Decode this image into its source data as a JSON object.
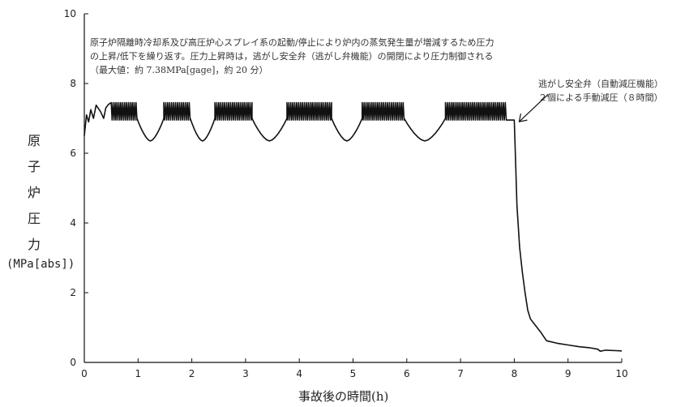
{
  "chart_data": {
    "type": "line",
    "title": "",
    "xlabel": "事故後の時間(h)",
    "ylabel": "原子炉圧力",
    "ylabel_chars": [
      "原",
      "子",
      "炉",
      "圧",
      "力"
    ],
    "ylabel_unit": "(MPa[abs])",
    "xlim": [
      0,
      10
    ],
    "ylim": [
      0,
      10
    ],
    "x_ticks": [
      "0",
      "1",
      "2",
      "3",
      "4",
      "5",
      "6",
      "7",
      "8",
      "9",
      "10"
    ],
    "y_ticks": [
      "0",
      "2",
      "4",
      "6",
      "8",
      "10"
    ],
    "grid": false,
    "legend": "none",
    "note": "原子炉隔離時冷却系及び高圧炉心スプレイ系の起動/停止により炉内の蒸気発生量が増減するため圧力\nの上昇/低下を繰り返す。圧力上昇時は，逃がし安全弁（逃がし弁機能）の開閉により圧力制御される\n（最大値：約 7.38MPa[gage]，約 20 分）",
    "annotation": {
      "text": "逃がし安全弁（自動減圧機能）\n２個による手動減圧（８時間）",
      "x": 8.0,
      "y": 6.95
    },
    "series": [
      {
        "name": "",
        "color": "#111111",
        "cycles": [
          [
            0.5,
            0.98
          ],
          [
            1.48,
            1.97
          ],
          [
            2.43,
            3.12
          ],
          [
            3.77,
            4.6
          ],
          [
            5.17,
            5.95
          ],
          [
            6.72,
            7.85
          ]
        ],
        "dips": [
          [
            0.98,
            1.48
          ],
          [
            1.97,
            2.43
          ],
          [
            3.12,
            3.77
          ],
          [
            4.6,
            5.17
          ],
          [
            5.95,
            6.72
          ]
        ],
        "oscillation_band": [
          6.9,
          7.45
        ],
        "dip_min": 6.35,
        "points": [
          [
            0,
            6.5
          ],
          [
            0.04,
            7.1
          ],
          [
            0.08,
            6.9
          ],
          [
            0.12,
            7.25
          ],
          [
            0.17,
            7.0
          ],
          [
            0.22,
            7.38
          ],
          [
            0.3,
            7.2
          ],
          [
            0.36,
            7.0
          ],
          [
            0.4,
            7.3
          ],
          [
            0.45,
            7.4
          ],
          [
            8.0,
            6.95
          ],
          [
            8.02,
            6.0
          ],
          [
            8.05,
            4.5
          ],
          [
            8.1,
            3.3
          ],
          [
            8.15,
            2.6
          ],
          [
            8.2,
            2.0
          ],
          [
            8.25,
            1.5
          ],
          [
            8.3,
            1.25
          ],
          [
            8.4,
            1.05
          ],
          [
            8.5,
            0.85
          ],
          [
            8.6,
            0.62
          ],
          [
            8.8,
            0.55
          ],
          [
            9.0,
            0.5
          ],
          [
            9.2,
            0.45
          ],
          [
            9.4,
            0.42
          ],
          [
            9.55,
            0.38
          ],
          [
            9.6,
            0.32
          ],
          [
            9.7,
            0.35
          ],
          [
            10.0,
            0.33
          ]
        ]
      }
    ]
  }
}
